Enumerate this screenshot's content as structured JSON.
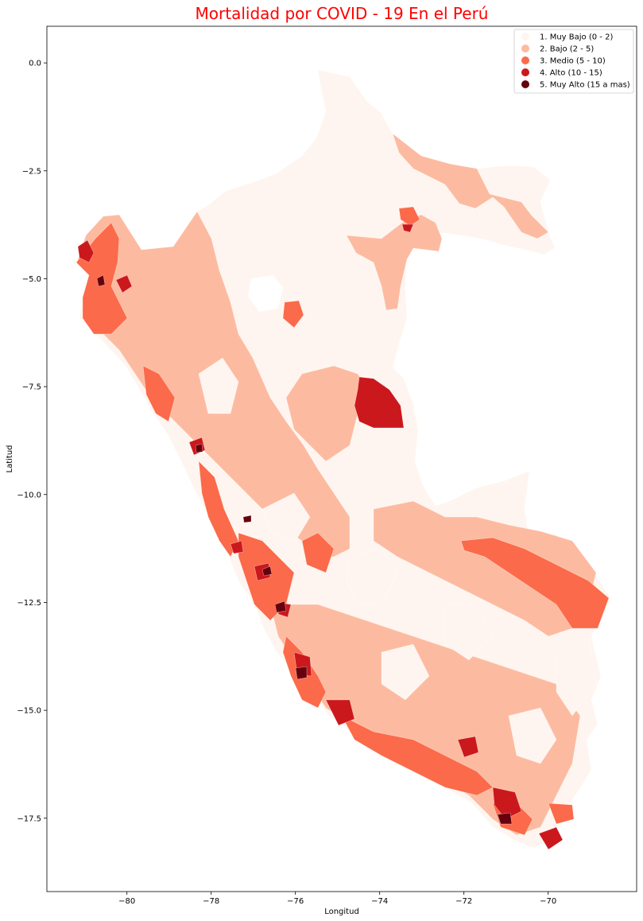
{
  "chart_data": {
    "type": "choropleth",
    "title": "Mortalidad por COVID - 19 En el Perú",
    "xlabel": "Longitud",
    "ylabel": "Latitud",
    "xlim": [
      -81.9,
      -67.9
    ],
    "ylim": [
      -19.2,
      0.85
    ],
    "xticks": [
      {
        "value": -80,
        "label": "−80"
      },
      {
        "value": -78,
        "label": "−78"
      },
      {
        "value": -76,
        "label": "−76"
      },
      {
        "value": -74,
        "label": "−74"
      },
      {
        "value": -72,
        "label": "−72"
      },
      {
        "value": -70,
        "label": "−70"
      }
    ],
    "yticks": [
      {
        "value": 0.0,
        "label": "0.0"
      },
      {
        "value": -2.5,
        "label": "−2.5"
      },
      {
        "value": -5.0,
        "label": "−5.0"
      },
      {
        "value": -7.5,
        "label": "−7.5"
      },
      {
        "value": -10.0,
        "label": "−10.0"
      },
      {
        "value": -12.5,
        "label": "−12.5"
      },
      {
        "value": -15.0,
        "label": "−15.0"
      },
      {
        "value": -17.5,
        "label": "−17.5"
      }
    ],
    "legend": {
      "placement": "top-right",
      "classes": [
        {
          "label": "1. Muy Bajo (0 - 2)",
          "color": "#fff5f0"
        },
        {
          "label": "2. Bajo (2 - 5)",
          "color": "#fcbba1"
        },
        {
          "label": "3. Medio (5 - 10)",
          "color": "#fb6a4a"
        },
        {
          "label": "4. Alto (10 - 15)",
          "color": "#cb181d"
        },
        {
          "label": "5. Muy Alto (15 a mas)",
          "color": "#67000d"
        }
      ]
    },
    "colors": {
      "title": "#ff0000"
    }
  }
}
